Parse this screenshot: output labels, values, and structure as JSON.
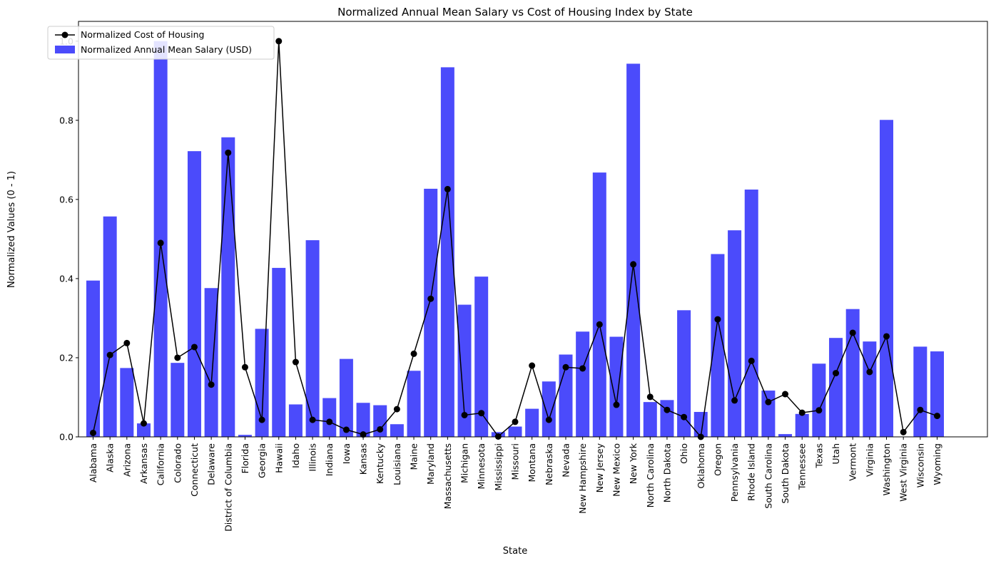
{
  "chart_data": {
    "type": "bar",
    "title": "Normalized Annual Mean Salary vs Cost of Housing Index by State",
    "xlabel": "State",
    "ylabel": "Normalized Values (0 - 1)",
    "ylim": [
      0,
      1.05
    ],
    "yticks": [
      "0.0",
      "0.2",
      "0.4",
      "0.6",
      "0.8",
      "1.0"
    ],
    "legend_position": "top-left",
    "categories": [
      "Alabama",
      "Alaska",
      "Arizona",
      "Arkansas",
      "California",
      "Colorado",
      "Connecticut",
      "Delaware",
      "District of Columbia",
      "Florida",
      "Georgia",
      "Hawaii",
      "Idaho",
      "Illinois",
      "Indiana",
      "Iowa",
      "Kansas",
      "Kentucky",
      "Louisiana",
      "Maine",
      "Maryland",
      "Massachusetts",
      "Michigan",
      "Minnesota",
      "Mississippi",
      "Missouri",
      "Montana",
      "Nebraska",
      "Nevada",
      "New Hampshire",
      "New Jersey",
      "New Mexico",
      "New York",
      "North Carolina",
      "North Dakota",
      "Ohio",
      "Oklahoma",
      "Oregon",
      "Pennsylvania",
      "Rhode Island",
      "South Carolina",
      "South Dakota",
      "Tennessee",
      "Texas",
      "Utah",
      "Vermont",
      "Virginia",
      "Washington",
      "West Virginia",
      "Wisconsin",
      "Wyoming"
    ],
    "series": [
      {
        "name": "Normalized Annual Mean Salary (USD)",
        "kind": "bar",
        "color": "#4b4bfb",
        "values": [
          0.395,
          0.557,
          0.174,
          0.034,
          1.0,
          0.187,
          0.722,
          0.376,
          0.757,
          0.005,
          0.273,
          0.427,
          0.082,
          0.497,
          0.098,
          0.197,
          0.086,
          0.08,
          0.032,
          0.167,
          0.627,
          0.934,
          0.334,
          0.405,
          0.012,
          0.026,
          0.071,
          0.14,
          0.208,
          0.266,
          0.668,
          0.253,
          0.943,
          0.088,
          0.093,
          0.32,
          0.063,
          0.462,
          0.522,
          0.625,
          0.117,
          0.007,
          0.058,
          0.185,
          0.25,
          0.323,
          0.241,
          0.801,
          0.0,
          0.228,
          0.216
        ]
      },
      {
        "name": "Normalized Cost of Housing",
        "kind": "line",
        "color": "#000000",
        "values": [
          0.01,
          0.207,
          0.237,
          0.034,
          0.49,
          0.2,
          0.227,
          0.132,
          0.718,
          0.176,
          0.043,
          1.0,
          0.189,
          0.043,
          0.038,
          0.018,
          0.006,
          0.019,
          0.07,
          0.21,
          0.349,
          0.626,
          0.055,
          0.06,
          0.001,
          0.038,
          0.18,
          0.043,
          0.176,
          0.173,
          0.284,
          0.081,
          0.436,
          0.101,
          0.068,
          0.05,
          0.0,
          0.297,
          0.092,
          0.192,
          0.088,
          0.108,
          0.061,
          0.067,
          0.161,
          0.263,
          0.164,
          0.254,
          0.012,
          0.068,
          0.053
        ]
      }
    ]
  }
}
